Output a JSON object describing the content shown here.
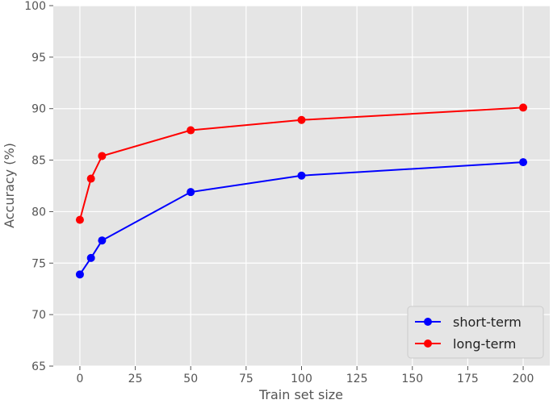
{
  "chart_data": {
    "type": "line",
    "xlabel": "Train set size",
    "ylabel": "Accuracy (%)",
    "xlim": [
      -12,
      212
    ],
    "ylim": [
      65,
      100
    ],
    "xticks": [
      0,
      25,
      50,
      75,
      100,
      125,
      150,
      175,
      200
    ],
    "yticks": [
      65,
      70,
      75,
      80,
      85,
      90,
      95,
      100
    ],
    "grid": true,
    "legend_position": "bottom-right",
    "series": [
      {
        "name": "short-term",
        "color": "#0000ff",
        "x": [
          0,
          5,
          10,
          50,
          100,
          200
        ],
        "y": [
          73.9,
          75.5,
          77.2,
          81.9,
          83.5,
          84.8
        ]
      },
      {
        "name": "long-term",
        "color": "#ff0000",
        "x": [
          0,
          5,
          10,
          50,
          100,
          200
        ],
        "y": [
          79.2,
          83.2,
          85.4,
          87.9,
          88.9,
          90.1
        ]
      }
    ]
  }
}
